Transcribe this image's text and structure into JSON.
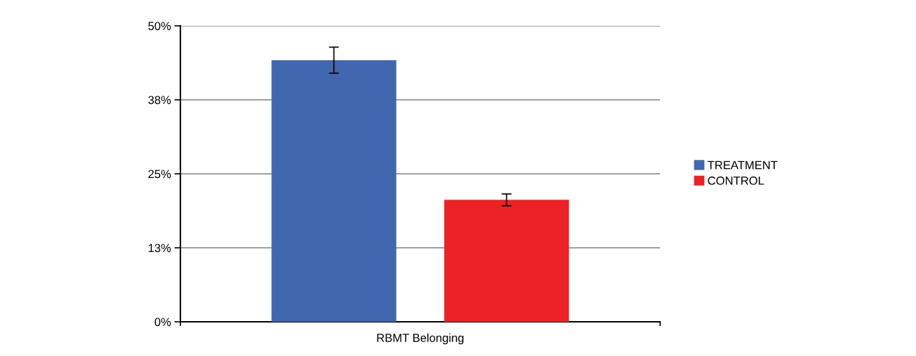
{
  "chart_data": {
    "type": "bar",
    "categories": [
      "RBMT Belonging"
    ],
    "series": [
      {
        "name": "TREATMENT",
        "color": "#4067b0",
        "values": [
          44.2
        ],
        "errors": [
          2.2
        ]
      },
      {
        "name": "CONTROL",
        "color": "#ec2227",
        "values": [
          20.6
        ],
        "errors": [
          1.0
        ]
      }
    ],
    "ylim": [
      0,
      50
    ],
    "yticks": [
      {
        "value": 0,
        "label": "0%"
      },
      {
        "value": 12.5,
        "label": "13%"
      },
      {
        "value": 25,
        "label": "25%"
      },
      {
        "value": 37.5,
        "label": "38%"
      },
      {
        "value": 50,
        "label": "50%"
      }
    ],
    "grid": "y",
    "legend": "right"
  }
}
